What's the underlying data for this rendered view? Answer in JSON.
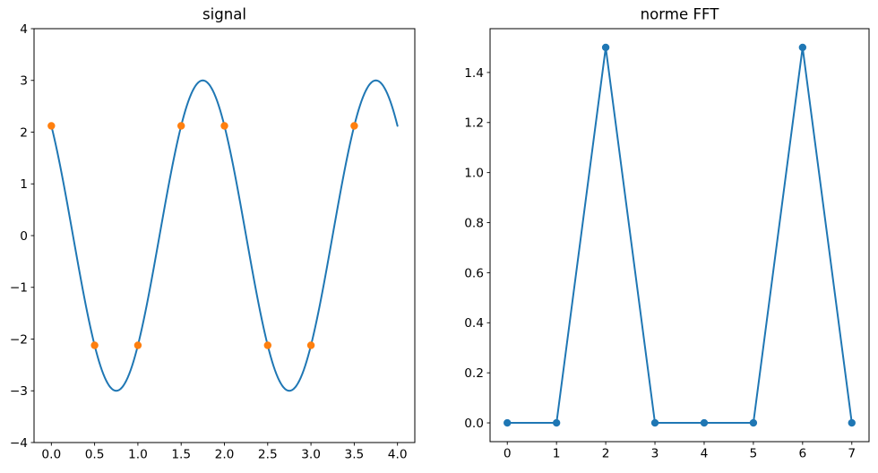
{
  "figure": {
    "background_color": "#ffffff",
    "text_color": "#000000",
    "colors": {
      "line_blue": "#1f77b4",
      "marker_orange": "#ff7f0e"
    }
  },
  "chart_data": [
    {
      "type": "line",
      "title": "signal",
      "xlabel": "",
      "ylabel": "",
      "xlim": [
        -0.2,
        4.2
      ],
      "ylim": [
        -4,
        4
      ],
      "grid": false,
      "legend": "none",
      "xticks": {
        "values": [
          0,
          0.5,
          1,
          1.5,
          2,
          2.5,
          3,
          3.5,
          4
        ],
        "labels": [
          "0.0",
          "0.5",
          "1.0",
          "1.5",
          "2.0",
          "2.5",
          "3.0",
          "3.5",
          "4.0"
        ]
      },
      "yticks": {
        "values": [
          -4,
          -3,
          -2,
          -1,
          0,
          1,
          2,
          3,
          4
        ],
        "labels": [
          "−4",
          "−3",
          "−2",
          "−1",
          "0",
          "1",
          "2",
          "3",
          "4"
        ]
      },
      "series": [
        {
          "name": "signal-curve",
          "style": "line",
          "color": "#1f77b4",
          "line_width": 2,
          "curve": {
            "description": "y = 3*cos(2*pi*x/2 + 45deg), two periods",
            "amplitude": 3,
            "period": 2,
            "phase_deg": 45,
            "x_start": 0,
            "x_end": 4,
            "samples": 240
          }
        },
        {
          "name": "sampled-points",
          "style": "markers",
          "color": "#ff7f0e",
          "marker_size": 8.4,
          "x": [
            0,
            0.5,
            1,
            1.5,
            2,
            2.5,
            3,
            3.5
          ],
          "y": [
            2.1213,
            -2.1213,
            -2.1213,
            2.1213,
            2.1213,
            -2.1213,
            -2.1213,
            2.1213
          ]
        }
      ]
    },
    {
      "type": "line",
      "title": "norme FFT",
      "xlabel": "",
      "ylabel": "",
      "xlim": [
        -0.35,
        7.35
      ],
      "ylim": [
        -0.075,
        1.575
      ],
      "grid": false,
      "legend": "none",
      "xticks": {
        "values": [
          0,
          1,
          2,
          3,
          4,
          5,
          6,
          7
        ],
        "labels": [
          "0",
          "1",
          "2",
          "3",
          "4",
          "5",
          "6",
          "7"
        ]
      },
      "yticks": {
        "values": [
          0,
          0.2,
          0.4,
          0.6,
          0.8,
          1.0,
          1.2,
          1.4
        ],
        "labels": [
          "0.0",
          "0.2",
          "0.4",
          "0.6",
          "0.8",
          "1.0",
          "1.2",
          "1.4"
        ]
      },
      "series": [
        {
          "name": "fft-norm",
          "style": "line+markers",
          "color": "#1f77b4",
          "line_width": 2,
          "marker_size": 8.4,
          "x": [
            0,
            1,
            2,
            3,
            4,
            5,
            6,
            7
          ],
          "y": [
            0,
            0,
            1.5,
            0,
            0,
            0,
            1.5,
            0
          ]
        }
      ]
    }
  ]
}
